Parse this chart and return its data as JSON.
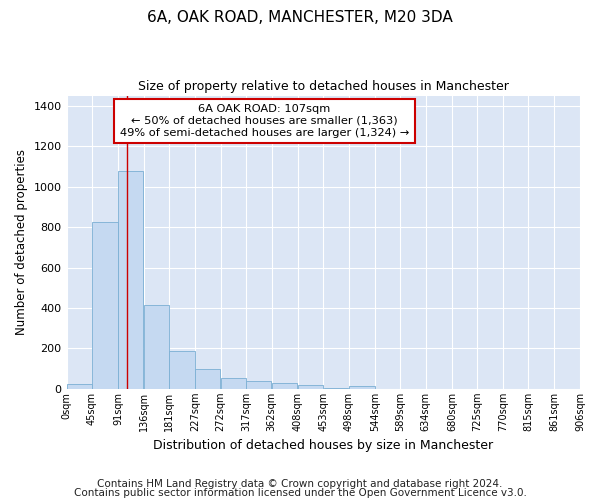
{
  "title": "6A, OAK ROAD, MANCHESTER, M20 3DA",
  "subtitle": "Size of property relative to detached houses in Manchester",
  "xlabel": "Distribution of detached houses by size in Manchester",
  "ylabel": "Number of detached properties",
  "bar_color": "#c5d9f1",
  "bar_edge_color": "#7bafd4",
  "background_color": "#dce6f5",
  "vline_x": 107,
  "vline_color": "#cc0000",
  "annotation_lines": [
    "6A OAK ROAD: 107sqm",
    "← 50% of detached houses are smaller (1,363)",
    "49% of semi-detached houses are larger (1,324) →"
  ],
  "annotation_box_color": "#ffffff",
  "annotation_border_color": "#cc0000",
  "bin_edges": [
    0,
    45,
    91,
    136,
    181,
    227,
    272,
    317,
    362,
    408,
    453,
    498,
    544,
    589,
    634,
    680,
    725,
    770,
    815,
    861,
    906
  ],
  "bar_heights": [
    25,
    825,
    1075,
    415,
    185,
    100,
    55,
    37,
    28,
    18,
    5,
    12,
    0,
    0,
    0,
    0,
    0,
    0,
    0,
    0
  ],
  "ylim": [
    0,
    1450
  ],
  "yticks": [
    0,
    200,
    400,
    600,
    800,
    1000,
    1200,
    1400
  ],
  "footer_lines": [
    "Contains HM Land Registry data © Crown copyright and database right 2024.",
    "Contains public sector information licensed under the Open Government Licence v3.0."
  ],
  "footer_fontsize": 7.5,
  "title_fontsize": 11,
  "subtitle_fontsize": 9,
  "ylabel_fontsize": 8.5,
  "xlabel_fontsize": 9
}
